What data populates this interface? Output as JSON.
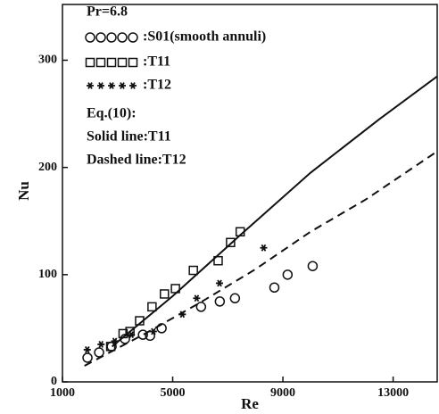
{
  "chart_data": {
    "type": "scatter",
    "x_label": "Re",
    "y_label": "Nu",
    "xlim": [
      1000,
      14600
    ],
    "ylim": [
      0,
      352
    ],
    "xticks": [
      1000,
      5000,
      9000,
      13000
    ],
    "yticks": [
      0,
      100,
      200,
      300
    ],
    "grid": false,
    "annotations": [
      "Pr=6.8",
      "Eq.(10):",
      "Solid line:T11",
      "Dashed line:T12"
    ],
    "series": [
      {
        "name": ":S01(smooth annuli)",
        "marker": "circle",
        "color": "#111",
        "x": [
          1908,
          2330,
          2784,
          3270,
          3920,
          4180,
          4600,
          6030,
          6710,
          7260,
          8690,
          9170,
          10080
        ],
        "values": [
          22.5,
          27.5,
          33,
          40,
          44,
          43,
          50,
          70,
          75,
          78,
          88,
          100,
          108
        ]
      },
      {
        "name": ":T11",
        "marker": "square",
        "color": "#111",
        "x": [
          2750,
          3200,
          3450,
          3800,
          4250,
          4700,
          5100,
          5750,
          6650,
          7100,
          7450
        ],
        "values": [
          33,
          45,
          47,
          57,
          70,
          82,
          87,
          104,
          113,
          130,
          140
        ]
      },
      {
        "name": ":T12",
        "marker": "star",
        "color": "#111",
        "x": [
          1900,
          2400,
          2900,
          3500,
          4300,
          5350,
          5870,
          6700,
          8300
        ],
        "values": [
          30,
          35,
          38,
          44,
          47,
          63,
          78,
          92,
          125
        ]
      }
    ],
    "lines": [
      {
        "style": "solid",
        "color": "#111",
        "x": [
          2800,
          5000,
          7500,
          10000,
          12500,
          14600
        ],
        "values": [
          33,
          80,
          138,
          195,
          245,
          285
        ]
      },
      {
        "style": "dashed",
        "color": "#111",
        "x": [
          1800,
          4000,
          6000,
          8000,
          10000,
          12000,
          14600
        ],
        "values": [
          15,
          45,
          74,
          105,
          140,
          170,
          215
        ]
      }
    ]
  }
}
